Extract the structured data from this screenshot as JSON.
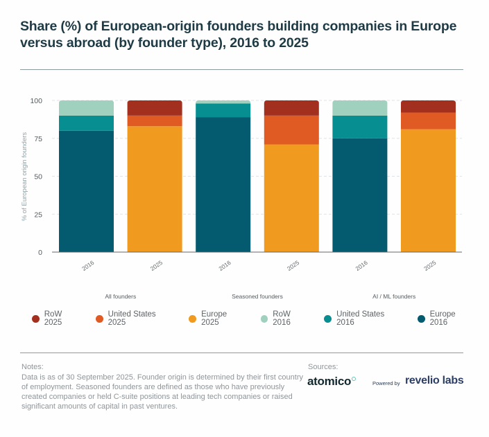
{
  "chart_data": {
    "type": "bar",
    "stacked": true,
    "title": "Share (%) of European-origin founders building companies in Europe versus abroad (by founder type), 2016 to 2025",
    "ylabel": "% of European origin founders",
    "xlabel": "",
    "ylim": [
      0,
      100
    ],
    "yticks": [
      "0",
      "25",
      "50",
      "75",
      "100"
    ],
    "ytick_values": [
      0,
      25,
      50,
      75,
      100
    ],
    "grid": true,
    "groups": [
      "All founders",
      "Seasoned founders",
      "AI / ML founders"
    ],
    "categories": [
      "2016",
      "2025",
      "2016",
      "2025",
      "2016",
      "2025"
    ],
    "bars": [
      {
        "group": "All founders",
        "year": "2016",
        "segments": [
          {
            "series": "Europe 2016",
            "value": 80
          },
          {
            "series": "United States 2016",
            "value": 10
          },
          {
            "series": "RoW 2016",
            "value": 10
          }
        ]
      },
      {
        "group": "All founders",
        "year": "2025",
        "segments": [
          {
            "series": "Europe 2025",
            "value": 83
          },
          {
            "series": "United States 2025",
            "value": 7
          },
          {
            "series": "RoW 2025",
            "value": 10
          }
        ]
      },
      {
        "group": "Seasoned founders",
        "year": "2016",
        "segments": [
          {
            "series": "Europe 2016",
            "value": 89
          },
          {
            "series": "United States 2016",
            "value": 9
          },
          {
            "series": "RoW 2016",
            "value": 2
          }
        ]
      },
      {
        "group": "Seasoned founders",
        "year": "2025",
        "segments": [
          {
            "series": "Europe 2025",
            "value": 71
          },
          {
            "series": "United States 2025",
            "value": 19
          },
          {
            "series": "RoW 2025",
            "value": 10
          }
        ]
      },
      {
        "group": "AI / ML founders",
        "year": "2016",
        "segments": [
          {
            "series": "Europe 2016",
            "value": 75
          },
          {
            "series": "United States 2016",
            "value": 15
          },
          {
            "series": "RoW 2016",
            "value": 10
          }
        ]
      },
      {
        "group": "AI / ML founders",
        "year": "2025",
        "segments": [
          {
            "series": "Europe 2025",
            "value": 81
          },
          {
            "series": "United States 2025",
            "value": 11
          },
          {
            "series": "RoW 2025",
            "value": 8
          }
        ]
      }
    ],
    "legend": [
      {
        "label": "RoW 2025",
        "color": "#a3301f"
      },
      {
        "label": "United States 2025",
        "color": "#e05a24"
      },
      {
        "label": "Europe 2025",
        "color": "#f09a20"
      },
      {
        "label": "RoW 2016",
        "color": "#a0d0be"
      },
      {
        "label": "United States 2016",
        "color": "#078e91"
      },
      {
        "label": "Europe 2016",
        "color": "#045a6e"
      }
    ],
    "legend_position": "bottom"
  },
  "notes": {
    "heading": "Notes:",
    "text": "Data is as of 30 September 2025. Founder origin is determined by their first country of employment. Seasoned founders are defined as those who have previously created companies or held C-suite positions at leading tech companies or raised significant amounts of capital in past ventures."
  },
  "sources": {
    "heading": "Sources:",
    "atomico": "atomico",
    "powered_by": "Powered by",
    "revelio": "revelio labs"
  }
}
